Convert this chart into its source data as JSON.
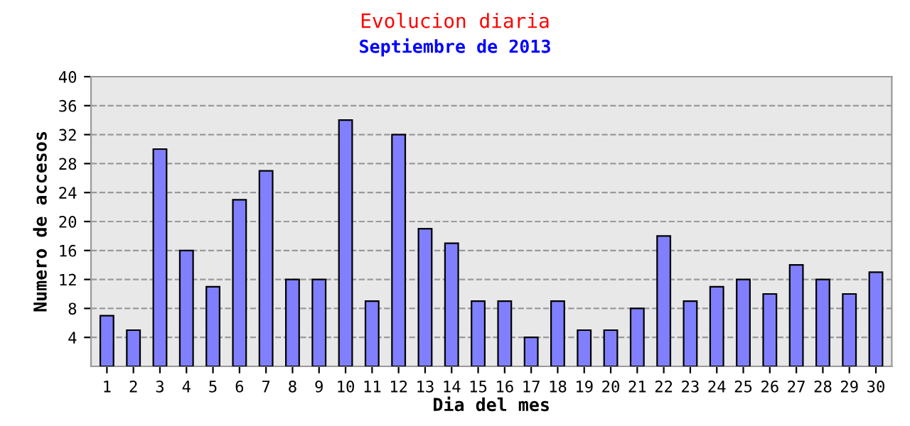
{
  "chart_data": {
    "type": "bar",
    "title": "Evolucion diaria",
    "subtitle": "Septiembre de 2013",
    "xlabel": "Dia del mes",
    "ylabel": "Numero de accesos",
    "categories": [
      "1",
      "2",
      "3",
      "4",
      "5",
      "6",
      "7",
      "8",
      "9",
      "10",
      "11",
      "12",
      "13",
      "14",
      "15",
      "16",
      "17",
      "18",
      "19",
      "20",
      "21",
      "22",
      "23",
      "24",
      "25",
      "26",
      "27",
      "28",
      "29",
      "30"
    ],
    "values": [
      7,
      5,
      30,
      16,
      11,
      23,
      27,
      12,
      12,
      34,
      9,
      32,
      19,
      17,
      9,
      9,
      4,
      9,
      5,
      5,
      8,
      18,
      9,
      11,
      12,
      10,
      14,
      12,
      10,
      13
    ],
    "color": "#8080ff",
    "ylim": [
      0,
      40
    ],
    "yticks": [
      4,
      8,
      12,
      16,
      20,
      24,
      28,
      32,
      36,
      40
    ],
    "grid": "y"
  }
}
